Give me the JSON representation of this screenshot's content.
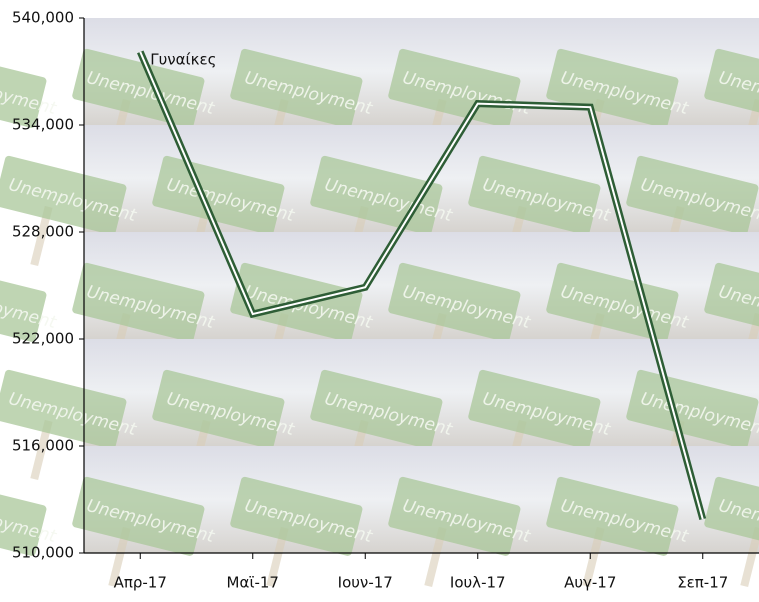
{
  "chart_data": {
    "type": "line",
    "categories": [
      "Απρ-17",
      "Μαϊ-17",
      "Ιουν-17",
      "Ιουλ-17",
      "Αυγ-17",
      "Σεπ-17"
    ],
    "series": [
      {
        "name": "Γυναίκες",
        "color": "#2e5e36",
        "values": [
          538100,
          523400,
          524900,
          535200,
          535000,
          511900
        ]
      }
    ],
    "ylim": [
      510000,
      540000
    ],
    "yticks": [
      {
        "value": 510000,
        "label": "510,000"
      },
      {
        "value": 516000,
        "label": "516,000"
      },
      {
        "value": 522000,
        "label": "522,000"
      },
      {
        "value": 528000,
        "label": "528,000"
      },
      {
        "value": 534000,
        "label": "534,000"
      },
      {
        "value": 540000,
        "label": "540,000"
      }
    ]
  }
}
